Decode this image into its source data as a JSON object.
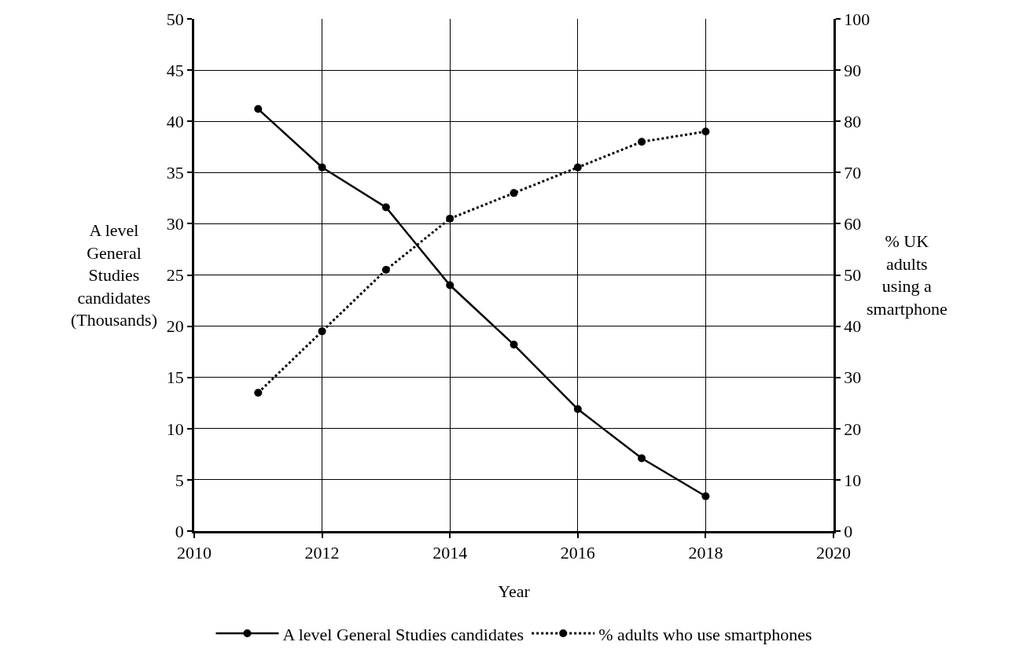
{
  "chart_data": {
    "type": "line",
    "x": [
      2011,
      2012,
      2013,
      2014,
      2015,
      2016,
      2017,
      2018
    ],
    "series": [
      {
        "name": "A level General Studies candidates",
        "color": "#000000",
        "line_style": "solid",
        "values": [
          41.2,
          35.5,
          31.6,
          24.0,
          18.2,
          11.9,
          7.1,
          3.4
        ]
      },
      {
        "name": "% adults who use smartphones",
        "color": "#000000",
        "line_style": "dotted",
        "axis": "y2",
        "values": [
          27,
          39,
          51,
          61,
          66,
          71,
          76,
          78
        ]
      }
    ],
    "xlabel": "Year",
    "ylabel": "A level General Studies candidates (Thousands)",
    "y2label": "% UK adults using a smartphone",
    "xlim": [
      2010,
      2020
    ],
    "xticks": [
      2010,
      2012,
      2014,
      2016,
      2018,
      2020
    ],
    "ylim": [
      0,
      50
    ],
    "yticks": [
      0,
      5,
      10,
      15,
      20,
      25,
      30,
      35,
      40,
      45,
      50
    ],
    "y2lim": [
      0,
      100
    ],
    "y2ticks": [
      0,
      10,
      20,
      30,
      40,
      50,
      60,
      70,
      80,
      90,
      100
    ],
    "grid": true,
    "legend": "bottom",
    "marker": "circle"
  }
}
